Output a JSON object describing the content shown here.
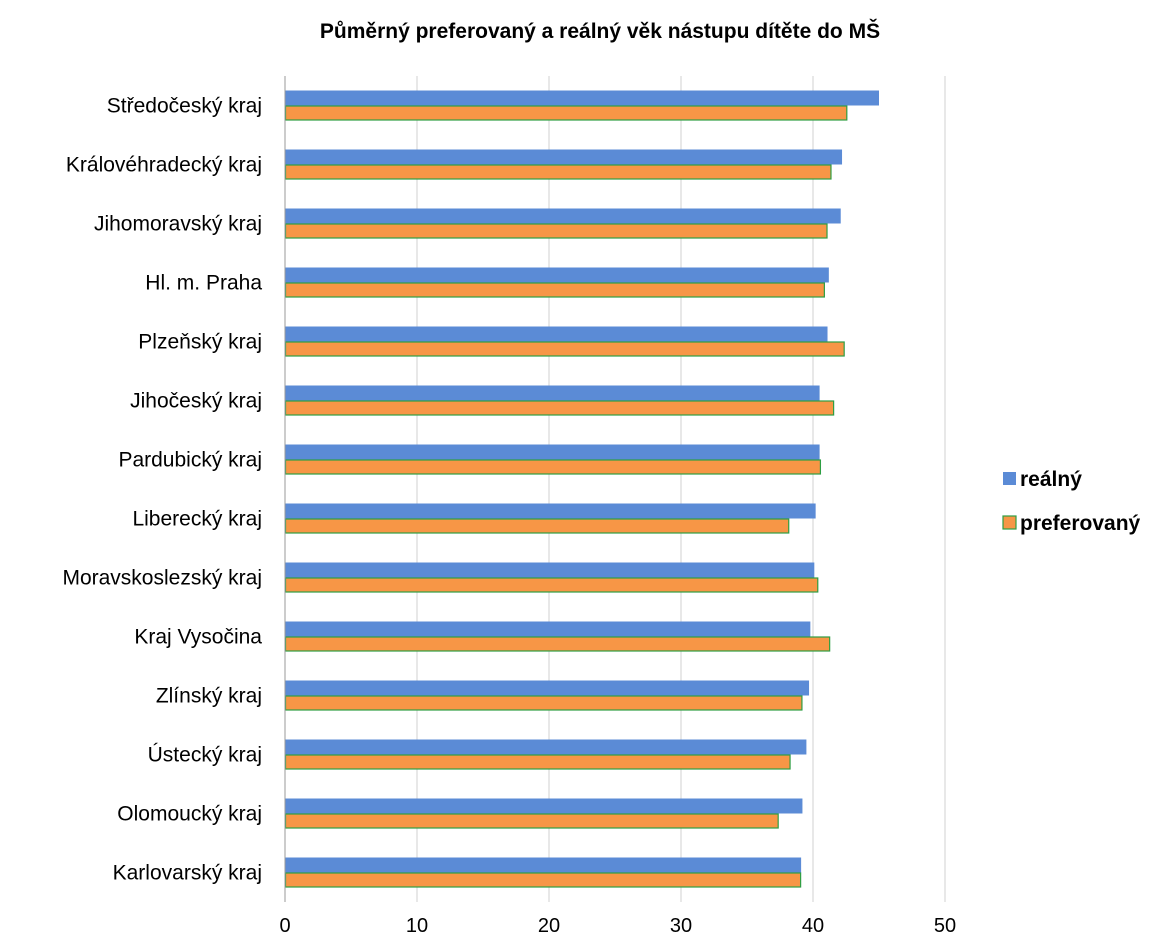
{
  "chart_data": {
    "type": "bar",
    "orientation": "horizontal",
    "title": "Půměrný preferovaný a reálný věk nástupu dítěte do MŠ",
    "xlabel": "",
    "ylabel": "",
    "xlim": [
      0,
      50
    ],
    "x_ticks": [
      "0",
      "10",
      "20",
      "30",
      "40",
      "50"
    ],
    "grid": "vertical",
    "legend_position": "right",
    "categories": [
      "Středočeský kraj",
      "Královéhradecký kraj",
      "Jihomoravský kraj",
      "Hl. m. Praha",
      "Plzeňský kraj",
      "Jihočeský kraj",
      "Pardubický kraj",
      "Liberecký kraj",
      "Moravskoslezský kraj",
      "Kraj Vysočina",
      "Zlínský kraj",
      "Ústecký kraj",
      "Olomoucký kraj",
      "Karlovarský kraj"
    ],
    "series": [
      {
        "name": "reálný",
        "color": "#5B8BD6",
        "values": [
          45.0,
          42.2,
          42.1,
          41.2,
          41.1,
          40.5,
          40.5,
          40.2,
          40.1,
          39.8,
          39.7,
          39.5,
          39.2,
          39.1
        ]
      },
      {
        "name": "preferovaný",
        "color": "#F79646",
        "border_color": "#2E9E43",
        "values": [
          42.6,
          41.4,
          41.1,
          40.9,
          42.4,
          41.6,
          40.6,
          38.2,
          40.4,
          41.3,
          39.2,
          38.3,
          37.4,
          39.1
        ]
      }
    ]
  }
}
